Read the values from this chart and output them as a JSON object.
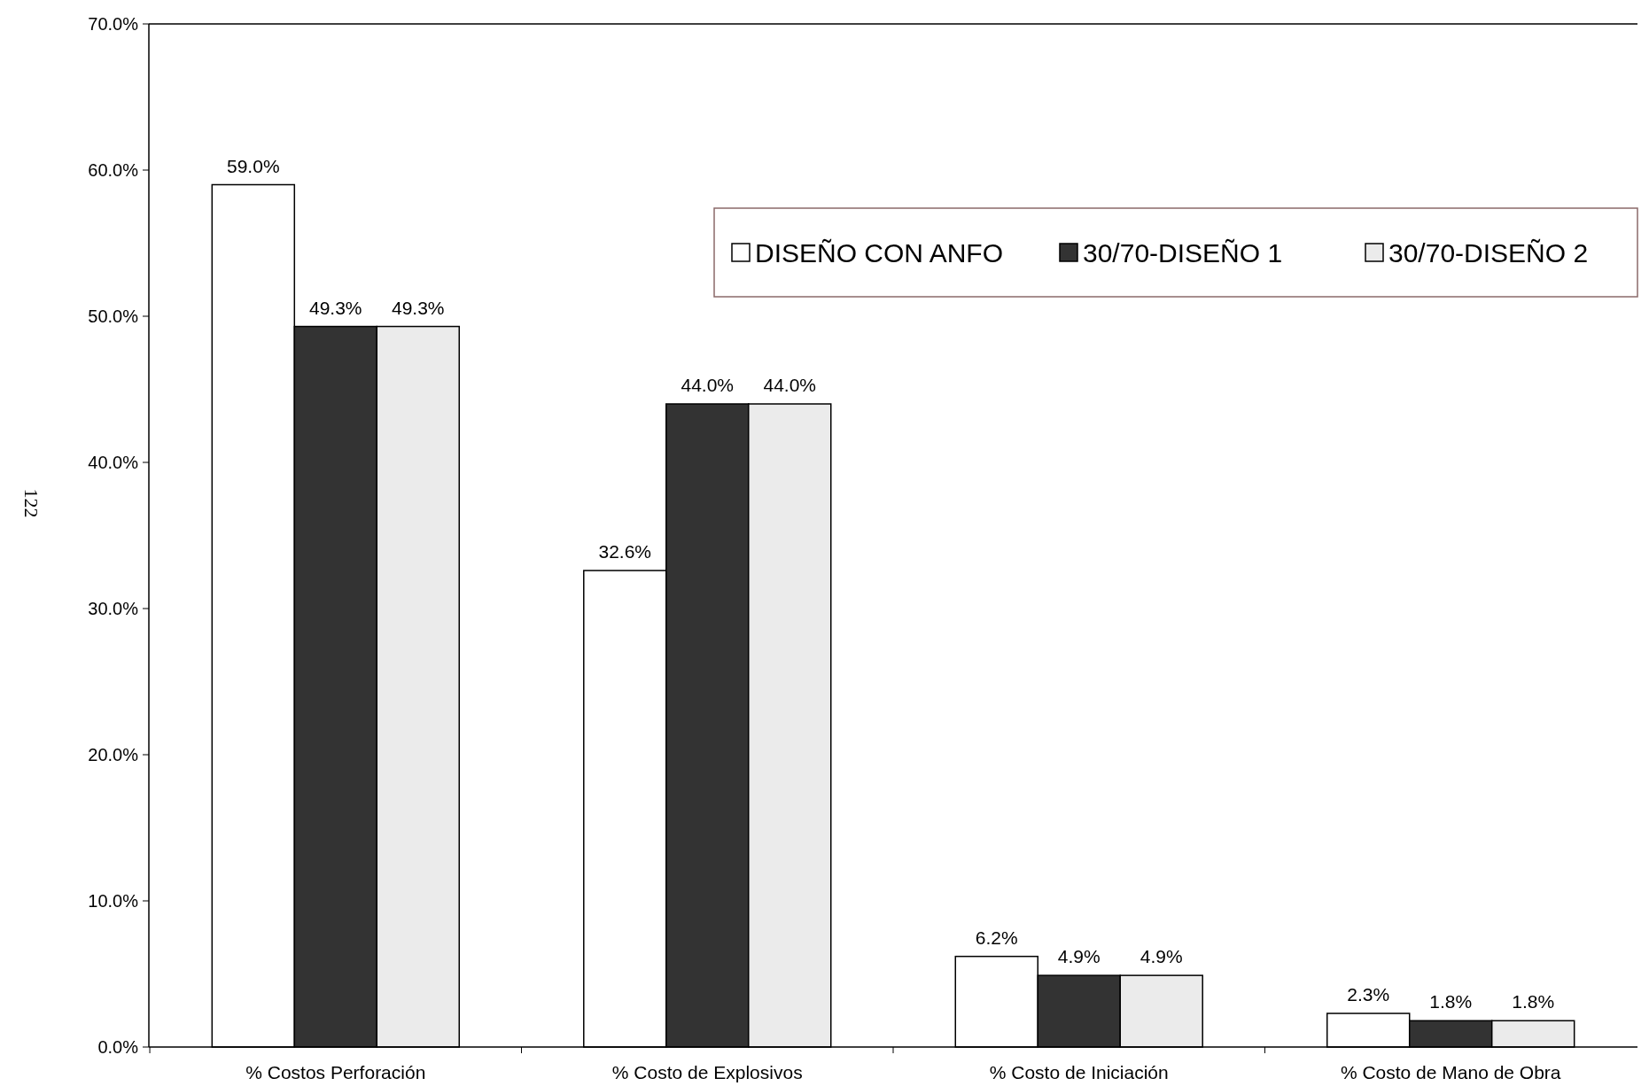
{
  "chart_data": {
    "type": "bar",
    "categories": [
      "% Costos Perforación",
      "% Costo de Explosivos",
      "% Costo de Iniciación",
      "% Costo de Mano de Obra"
    ],
    "series": [
      {
        "name": "DISEÑO CON ANFO",
        "color": "#ffffff",
        "values": [
          59.0,
          32.6,
          6.2,
          2.3
        ],
        "value_labels": [
          "59.0%",
          "32.6%",
          "6.2%",
          "2.3%"
        ]
      },
      {
        "name": "30/70-DISEÑO 1",
        "color": "#333333",
        "values": [
          49.3,
          44.0,
          4.9,
          1.8
        ],
        "value_labels": [
          "49.3%",
          "44.0%",
          "4.9%",
          "1.8%"
        ]
      },
      {
        "name": "30/70-DISEÑO 2",
        "color": "#ebebeb",
        "values": [
          49.3,
          44.0,
          4.9,
          1.8
        ],
        "value_labels": [
          "49.3%",
          "44.0%",
          "4.9%",
          "1.8%"
        ]
      }
    ],
    "ylim": [
      0,
      70
    ],
    "yticks": [
      {
        "value": 0,
        "label": "0.0%"
      },
      {
        "value": 10,
        "label": "10.0%"
      },
      {
        "value": 20,
        "label": "20.0%"
      },
      {
        "value": 30,
        "label": "30.0%"
      },
      {
        "value": 40,
        "label": "40.0%"
      },
      {
        "value": 50,
        "label": "50.0%"
      },
      {
        "value": 60,
        "label": "60.0%"
      },
      {
        "value": 70,
        "label": "70.0%"
      }
    ],
    "legend": "top right",
    "annotations": [
      "122"
    ]
  }
}
